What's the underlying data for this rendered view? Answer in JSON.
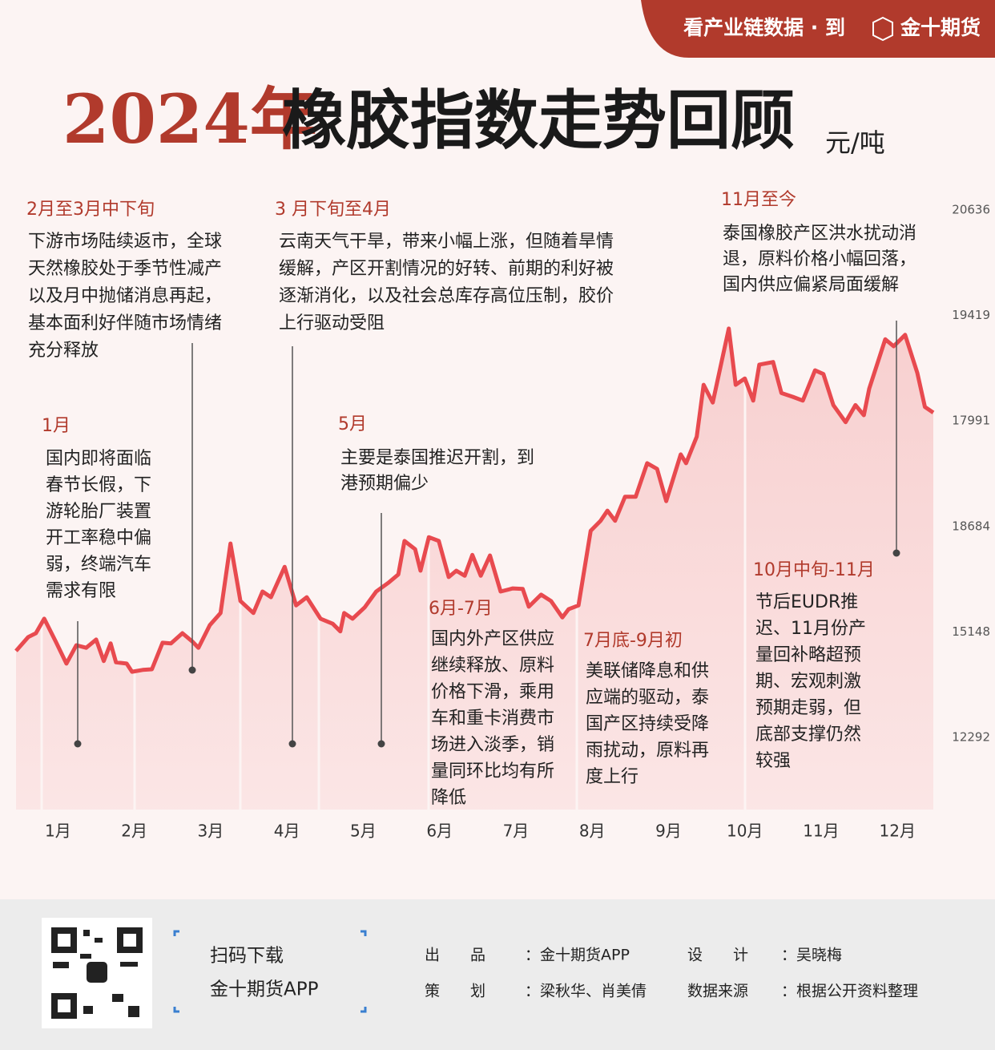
{
  "header": {
    "tab": "看产业链数据 · 到",
    "brand": "金十期货"
  },
  "chart_data": {
    "type": "line",
    "title_highlight": "2024年",
    "title": "橡胶指数走势回顾",
    "unit": "元/吨",
    "color": "#e84a4f",
    "x": [
      0.45,
      0.61,
      0.71,
      0.82,
      0.97,
      1.11,
      1.24,
      1.37,
      1.5,
      1.6,
      1.69,
      1.76,
      1.9,
      1.97,
      2.11,
      2.23,
      2.37,
      2.48,
      2.63,
      2.76,
      2.84,
      2.99,
      3.13,
      3.26,
      3.39,
      3.56,
      3.68,
      3.79,
      3.97,
      4.12,
      4.26,
      4.44,
      4.6,
      4.7,
      4.75,
      4.86,
      5.02,
      5.17,
      5.33,
      5.46,
      5.54,
      5.68,
      5.75,
      5.86,
      5.99,
      6.12,
      6.22,
      6.33,
      6.43,
      6.54,
      6.66,
      6.8,
      6.96,
      7.09,
      7.17,
      7.33,
      7.46,
      7.61,
      7.69,
      7.82,
      7.98,
      8.11,
      8.2,
      8.3,
      8.43,
      8.57,
      8.72,
      8.85,
      8.97,
      9.16,
      9.23,
      9.37,
      9.46,
      9.58,
      9.79,
      9.88,
      10.0,
      10.11,
      10.19,
      10.37,
      10.48,
      10.63,
      10.76,
      10.92,
      11.03,
      11.16,
      11.32,
      11.45,
      11.56,
      11.63,
      11.84,
      11.95,
      12.1,
      12.26,
      12.36,
      12.47
    ],
    "values": [
      13660,
      13880,
      13940,
      14170,
      13810,
      13460,
      13750,
      13710,
      13840,
      13500,
      13780,
      13480,
      13460,
      13330,
      13360,
      13370,
      13790,
      13780,
      13940,
      13810,
      13710,
      14070,
      14260,
      15360,
      14450,
      14260,
      14600,
      14510,
      14990,
      14380,
      14510,
      14170,
      14090,
      13970,
      14260,
      14170,
      14350,
      14600,
      14740,
      14870,
      15400,
      15270,
      14930,
      15460,
      15400,
      14830,
      14930,
      14850,
      15180,
      14850,
      15170,
      14600,
      14650,
      14640,
      14360,
      14550,
      14450,
      14190,
      14320,
      14380,
      15560,
      15720,
      15880,
      15720,
      16100,
      16100,
      16630,
      16540,
      16030,
      16770,
      16630,
      17050,
      17870,
      17590,
      18760,
      17870,
      17970,
      17620,
      18190,
      18230,
      17740,
      17680,
      17620,
      18100,
      18040,
      17550,
      17280,
      17550,
      17390,
      17810,
      18590,
      18480,
      18660,
      18060,
      17520,
      17430
    ],
    "xlim": [
      0.45,
      12.47
    ],
    "ylim": [
      12292,
      20636
    ],
    "xticks": [
      {
        "value": 1,
        "label": "1月"
      },
      {
        "value": 2,
        "label": "2月"
      },
      {
        "value": 3,
        "label": "3月"
      },
      {
        "value": 4,
        "label": "4月"
      },
      {
        "value": 5,
        "label": "5月"
      },
      {
        "value": 6,
        "label": "6月"
      },
      {
        "value": 7,
        "label": "7月"
      },
      {
        "value": 8,
        "label": "8月"
      },
      {
        "value": 9,
        "label": "9月"
      },
      {
        "value": 10,
        "label": "10月"
      },
      {
        "value": 11,
        "label": "11月"
      },
      {
        "value": 12,
        "label": "12月"
      }
    ],
    "y_axis_labels": [
      "20636",
      "19419",
      "17991",
      "18684",
      "15148",
      "12292"
    ],
    "annotations": [
      {
        "title": "2月至3月中下旬",
        "lines": [
          "下游市场陆续返市，全球",
          "天然橡胶处于季节性减产",
          "以及月中抛储消息再起，",
          "基本面利好伴随市场情绪",
          "充分释放"
        ]
      },
      {
        "title": "3 月下旬至4月",
        "lines": [
          "云南天气干旱，带来小幅上涨，但随着旱情",
          "缓解，产区开割情况的好转、前期的利好被",
          "逐渐消化，以及社会总库存高位压制，胶价",
          "上行驱动受阻"
        ]
      },
      {
        "title": "11月至今",
        "lines": [
          "泰国橡胶产区洪水扰动消",
          "退，原料价格小幅回落，",
          "国内供应偏紧局面缓解"
        ]
      },
      {
        "title": "1月",
        "lines": [
          "国内即将面临",
          "春节长假，下",
          "游轮胎厂装置",
          "开工率稳中偏",
          "弱，终端汽车",
          "需求有限"
        ]
      },
      {
        "title": "5月",
        "lines": [
          "主要是泰国推迟开割，到",
          "港预期偏少"
        ]
      },
      {
        "title": "6月-7月",
        "lines": [
          "国内外产区供应",
          "继续释放、原料",
          "价格下滑，乘用",
          "车和重卡消费市",
          "场进入淡季，销",
          "量同环比均有所",
          "降低"
        ]
      },
      {
        "title": "7月底-9月初",
        "lines": [
          "美联储降息和供",
          "应端的驱动，泰",
          "国产区持续受降",
          "雨扰动，原料再",
          "度上行"
        ]
      },
      {
        "title": "10月中旬-11月",
        "lines": [
          "节后EUDR推",
          "迟、11月份产",
          "量回补略超预",
          "期、宏观刺激",
          "预期走弱，但",
          "底部支撑仍然",
          "较强"
        ]
      }
    ]
  },
  "footer": {
    "scan": "扫码下载",
    "app": "金十期货APP",
    "credits": [
      {
        "label": "出　　品",
        "value": "：金十期货APP"
      },
      {
        "label": "设　　计",
        "value": "：吴晓梅"
      },
      {
        "label": "策　　划",
        "value": "：梁秋华、肖美倩"
      },
      {
        "label": "数据来源",
        "value": "：根据公开资料整理"
      }
    ]
  }
}
